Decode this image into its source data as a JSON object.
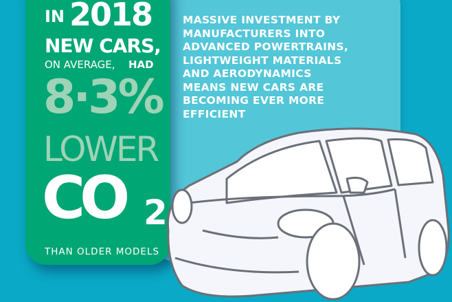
{
  "card": {
    "in": "IN",
    "year": "2018",
    "new_cars": "NEW CARS,",
    "on_average": "ON AVERAGE,",
    "had": "HAD",
    "percent": "8·3%",
    "lower": "LOWER",
    "co": "CO",
    "sub2": "2",
    "than": "THAN OLDER MODELS"
  },
  "message": {
    "lines": [
      "MASSIVE INVESTMENT BY",
      "MANUFACTURERS INTO",
      "ADVANCED POWERTRAINS,",
      "LIGHTWEIGHT MATERIALS",
      "AND AERODYNAMICS",
      "MEANS NEW CARS ARE",
      "BECOMING EVER MORE",
      "EFFICIENT"
    ]
  },
  "colors": {
    "background": "#0aa9c7",
    "panel": "#53c6d8",
    "card": "#00a673",
    "accent_text": "#9ed3b8"
  },
  "illustration": "car-outline"
}
